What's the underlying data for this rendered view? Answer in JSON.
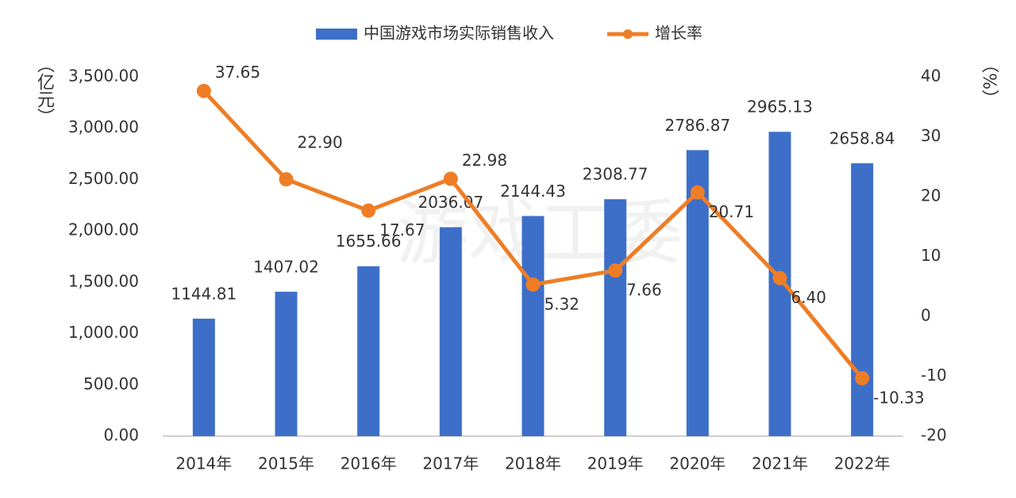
{
  "chart_data": {
    "type": "bar-line",
    "watermark": "游戏工委",
    "categories": [
      "2014年",
      "2015年",
      "2016年",
      "2017年",
      "2018年",
      "2019年",
      "2020年",
      "2021年",
      "2022年"
    ],
    "series": [
      {
        "name": "中国游戏市场实际销售收入",
        "type": "bar",
        "color": "#3d6fc8",
        "values": [
          1144.81,
          1407.02,
          1655.66,
          2036.07,
          2144.43,
          2308.77,
          2786.87,
          2965.13,
          2658.84
        ]
      },
      {
        "name": "增长率",
        "type": "line",
        "axis": "y2",
        "color": "#ee7d26",
        "values": [
          37.65,
          22.9,
          17.67,
          22.98,
          5.32,
          7.66,
          20.71,
          6.4,
          -10.33
        ],
        "value_labels": [
          "37.65",
          "22.90",
          "17.67",
          "22.98",
          "5.32",
          "7.66",
          "20.71",
          "6.40",
          "-10.33"
        ]
      }
    ],
    "ylabel": "（亿元）",
    "y2label": "（%）",
    "ylim": [
      0,
      3500
    ],
    "yticks": [
      {
        "value": 0,
        "label": "0.00"
      },
      {
        "value": 500,
        "label": "500.00"
      },
      {
        "value": 1000,
        "label": "1,000.00"
      },
      {
        "value": 1500,
        "label": "1,500.00"
      },
      {
        "value": 2000,
        "label": "2,000.00"
      },
      {
        "value": 2500,
        "label": "2,500.00"
      },
      {
        "value": 3000,
        "label": "3,000.00"
      },
      {
        "value": 3500,
        "label": "3,500.00"
      }
    ],
    "y2lim": [
      -20,
      40
    ],
    "y2ticks": [
      -20,
      -10,
      0,
      10,
      20,
      30,
      40
    ],
    "legend": "top"
  }
}
